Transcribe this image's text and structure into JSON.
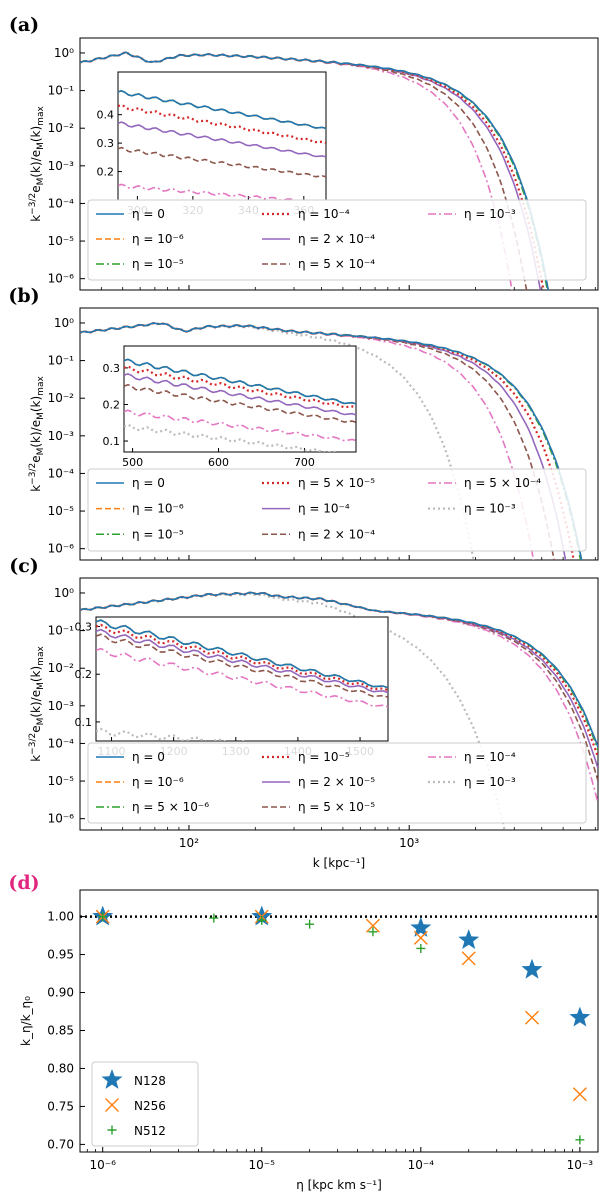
{
  "chart_data": [
    {
      "panel": "(a)",
      "type": "line",
      "xscale": "log",
      "yscale": "log",
      "xlim": [
        32,
        7200
      ],
      "ylim": [
        5e-07,
        2.5
      ],
      "ylabel": "k^{-3/2}e_M(k)/e_M(k)_max",
      "yticks": [
        {
          "v": 1,
          "l": "10⁰"
        },
        {
          "v": 0.1,
          "l": "10⁻¹"
        },
        {
          "v": 0.01,
          "l": "10⁻²"
        },
        {
          "v": 0.001,
          "l": "10⁻³"
        },
        {
          "v": 0.0001,
          "l": "10⁻⁴"
        },
        {
          "v": 1e-05,
          "l": "10⁻⁵"
        },
        {
          "v": 1e-06,
          "l": "10⁻⁶"
        }
      ],
      "series": [
        {
          "name": "η = 0",
          "color": "#1f77b4",
          "style": "solid",
          "kcut": 1600,
          "tail": 4.4,
          "cutoffScale": 1.0
        },
        {
          "name": "η = 10⁻⁶",
          "color": "#ff7f0e",
          "style": "dashed",
          "kcut": 1600,
          "tail": 4.4,
          "cutoffScale": 1.0
        },
        {
          "name": "η = 10⁻⁵",
          "color": "#2ca02c",
          "style": "dashdot",
          "kcut": 1600,
          "tail": 4.4,
          "cutoffScale": 0.99
        },
        {
          "name": "η = 10⁻⁴",
          "color": "#d62728",
          "style": "dotted",
          "kcut": 1600,
          "tail": 4.4,
          "cutoffScale": 0.95
        },
        {
          "name": "η = 2 × 10⁻⁴",
          "color": "#9467bd",
          "style": "solid",
          "kcut": 1600,
          "tail": 4.4,
          "cutoffScale": 0.92
        },
        {
          "name": "η = 5 × 10⁻⁴",
          "color": "#8c564b",
          "style": "dashed",
          "kcut": 1550,
          "tail": 4.6,
          "cutoffScale": 0.85
        },
        {
          "name": "η = 10⁻³",
          "color": "#e377c2",
          "style": "dashdot",
          "kcut": 1500,
          "tail": 4.8,
          "cutoffScale": 0.78
        }
      ],
      "spectrum": {
        "low": [
          [
            32,
            0.55
          ],
          [
            52,
            1.0
          ],
          [
            68,
            0.55
          ],
          [
            90,
            0.85
          ],
          [
            120,
            0.9
          ],
          [
            200,
            0.8
          ]
        ],
        "peak_k": 52
      },
      "inset": {
        "xlim": [
          293,
          368
        ],
        "ylim": [
          0.1,
          0.55
        ],
        "xticks": [
          300,
          320,
          340,
          360
        ],
        "yticks": [
          0.2,
          0.3,
          0.4
        ],
        "start": [
          0.48,
          0.48,
          0.48,
          0.43,
          0.37,
          0.28,
          0.15
        ],
        "end": [
          0.35,
          0.35,
          0.35,
          0.3,
          0.25,
          0.18,
          0.09
        ]
      }
    },
    {
      "panel": "(b)",
      "type": "line",
      "xscale": "log",
      "yscale": "log",
      "xlim": [
        32,
        7200
      ],
      "ylim": [
        5e-07,
        2.5
      ],
      "ylabel": "k^{-3/2}e_M(k)/e_M(k)_max",
      "yticks": [
        {
          "v": 1,
          "l": "10⁰"
        },
        {
          "v": 0.1,
          "l": "10⁻¹"
        },
        {
          "v": 0.01,
          "l": "10⁻²"
        },
        {
          "v": 0.001,
          "l": "10⁻³"
        },
        {
          "v": 0.0001,
          "l": "10⁻⁴"
        },
        {
          "v": 1e-05,
          "l": "10⁻⁵"
        },
        {
          "v": 1e-06,
          "l": "10⁻⁶"
        }
      ],
      "series": [
        {
          "name": "η = 0",
          "color": "#1f77b4",
          "style": "solid",
          "kcut": 2200,
          "tail": 4.2,
          "cutoffScale": 1.0
        },
        {
          "name": "η = 10⁻⁶",
          "color": "#ff7f0e",
          "style": "dashed",
          "kcut": 2200,
          "tail": 4.2,
          "cutoffScale": 1.0
        },
        {
          "name": "η = 10⁻⁵",
          "color": "#2ca02c",
          "style": "dashdot",
          "kcut": 2200,
          "tail": 4.2,
          "cutoffScale": 0.99
        },
        {
          "name": "η = 5 × 10⁻⁵",
          "color": "#d62728",
          "style": "dotted",
          "kcut": 2150,
          "tail": 4.3,
          "cutoffScale": 0.96
        },
        {
          "name": "η = 10⁻⁴",
          "color": "#9467bd",
          "style": "solid",
          "kcut": 2100,
          "tail": 4.4,
          "cutoffScale": 0.92
        },
        {
          "name": "η = 2 × 10⁻⁴",
          "color": "#8c564b",
          "style": "dashed",
          "kcut": 2000,
          "tail": 4.5,
          "cutoffScale": 0.87
        },
        {
          "name": "η = 5 × 10⁻⁴",
          "color": "#e377c2",
          "style": "dashdot",
          "kcut": 1900,
          "tail": 4.6,
          "cutoffScale": 0.75
        },
        {
          "name": "η = 10⁻³",
          "color": "#bbbbbb",
          "style": "dotted",
          "kcut": 1300,
          "tail": 4.3,
          "cutoffScale": 0.55
        }
      ],
      "spectrum": {
        "low": [
          [
            32,
            0.55
          ],
          [
            75,
            1.0
          ],
          [
            95,
            0.6
          ],
          [
            120,
            0.8
          ],
          [
            180,
            0.85
          ],
          [
            300,
            0.6
          ]
        ],
        "peak_k": 75
      },
      "inset": {
        "xlim": [
          490,
          760
        ],
        "ylim": [
          0.07,
          0.36
        ],
        "xticks": [
          500,
          600,
          700
        ],
        "yticks": [
          0.1,
          0.2,
          0.3
        ],
        "start": [
          0.32,
          0.32,
          0.32,
          0.3,
          0.28,
          0.25,
          0.18,
          0.14
        ],
        "end": [
          0.2,
          0.2,
          0.2,
          0.19,
          0.17,
          0.15,
          0.1,
          0.06
        ]
      }
    },
    {
      "panel": "(c)",
      "type": "line",
      "xscale": "log",
      "yscale": "log",
      "xlim": [
        32,
        7200
      ],
      "ylim": [
        5e-07,
        2.5
      ],
      "xlabel": "k [kpc⁻¹]",
      "xticks": [
        {
          "v": 100,
          "l": "10²"
        },
        {
          "v": 1000,
          "l": "10³"
        }
      ],
      "ylabel": "k^{-3/2}e_M(k)/e_M(k)_max",
      "yticks": [
        {
          "v": 1,
          "l": "10⁰"
        },
        {
          "v": 0.1,
          "l": "10⁻¹"
        },
        {
          "v": 0.01,
          "l": "10⁻²"
        },
        {
          "v": 0.001,
          "l": "10⁻³"
        },
        {
          "v": 0.0001,
          "l": "10⁻⁴"
        },
        {
          "v": 1e-05,
          "l": "10⁻⁵"
        },
        {
          "v": 1e-06,
          "l": "10⁻⁶"
        }
      ],
      "series": [
        {
          "name": "η = 0",
          "color": "#1f77b4",
          "style": "solid",
          "kcut": 3200,
          "tail": 4.0,
          "cutoffScale": 1.0
        },
        {
          "name": "η = 10⁻⁶",
          "color": "#ff7f0e",
          "style": "dashed",
          "kcut": 3200,
          "tail": 4.0,
          "cutoffScale": 1.0
        },
        {
          "name": "η = 5 × 10⁻⁶",
          "color": "#2ca02c",
          "style": "dashdot",
          "kcut": 3200,
          "tail": 4.0,
          "cutoffScale": 0.99
        },
        {
          "name": "η = 10⁻⁵",
          "color": "#d62728",
          "style": "dotted",
          "kcut": 3150,
          "tail": 4.0,
          "cutoffScale": 0.98
        },
        {
          "name": "η = 2 × 10⁻⁵",
          "color": "#9467bd",
          "style": "solid",
          "kcut": 3100,
          "tail": 4.0,
          "cutoffScale": 0.96
        },
        {
          "name": "η = 5 × 10⁻⁵",
          "color": "#8c564b",
          "style": "dashed",
          "kcut": 3050,
          "tail": 4.0,
          "cutoffScale": 0.94
        },
        {
          "name": "η = 10⁻⁴",
          "color": "#e377c2",
          "style": "dashdot",
          "kcut": 3000,
          "tail": 4.0,
          "cutoffScale": 0.9
        },
        {
          "name": "η = 10⁻³",
          "color": "#bbbbbb",
          "style": "dotted",
          "kcut": 1500,
          "tail": 3.4,
          "cutoffScale": 0.55
        }
      ],
      "spectrum": {
        "low": [
          [
            32,
            0.35
          ],
          [
            120,
            0.9
          ],
          [
            210,
            1.0
          ],
          [
            260,
            0.8
          ],
          [
            400,
            0.7
          ],
          [
            700,
            0.35
          ]
        ],
        "peak_k": 210
      },
      "inset": {
        "xlim": [
          1075,
          1545
        ],
        "ylim": [
          0.06,
          0.32
        ],
        "xticks": [
          1100,
          1200,
          1300,
          1400,
          1500
        ],
        "yticks": [
          0.1,
          0.2,
          0.3
        ],
        "start": [
          0.31,
          0.31,
          0.31,
          0.3,
          0.29,
          0.28,
          0.25,
          0.08
        ],
        "end": [
          0.17,
          0.17,
          0.17,
          0.165,
          0.16,
          0.15,
          0.13,
          0.03
        ]
      }
    },
    {
      "panel": "(d)",
      "type": "scatter",
      "xscale": "log",
      "xlim": [
        7.2e-07,
        0.0013
      ],
      "ylim": [
        0.69,
        1.035
      ],
      "xlabel": "η [kpc km s⁻¹]",
      "ylabel": "k_η/k_η₀",
      "xticks": [
        {
          "v": 1e-06,
          "l": "10⁻⁶"
        },
        {
          "v": 1e-05,
          "l": "10⁻⁵"
        },
        {
          "v": 0.0001,
          "l": "10⁻⁴"
        },
        {
          "v": 0.001,
          "l": "10⁻³"
        }
      ],
      "yticks": [
        0.7,
        0.75,
        0.8,
        0.85,
        0.9,
        0.95,
        1.0
      ],
      "reference_line": 1.0,
      "series": [
        {
          "name": "N128",
          "marker": "star",
          "color": "#1f77b4",
          "x": [
            1e-06,
            1e-05,
            0.0001,
            0.0002,
            0.0005,
            0.001
          ],
          "y": [
            1.0,
            1.0,
            0.985,
            0.969,
            0.93,
            0.867
          ]
        },
        {
          "name": "N256",
          "marker": "x",
          "color": "#ff7f0e",
          "x": [
            1e-06,
            1e-05,
            5e-05,
            0.0001,
            0.0002,
            0.0005,
            0.001
          ],
          "y": [
            1.0,
            1.0,
            0.988,
            0.972,
            0.945,
            0.867,
            0.766
          ]
        },
        {
          "name": "N512",
          "marker": "plus",
          "color": "#2ca02c",
          "x": [
            1e-06,
            5e-06,
            1e-05,
            2e-05,
            5e-05,
            0.0001,
            0.001
          ],
          "y": [
            1.0,
            0.998,
            0.995,
            0.99,
            0.98,
            0.958,
            0.706
          ]
        }
      ]
    }
  ]
}
